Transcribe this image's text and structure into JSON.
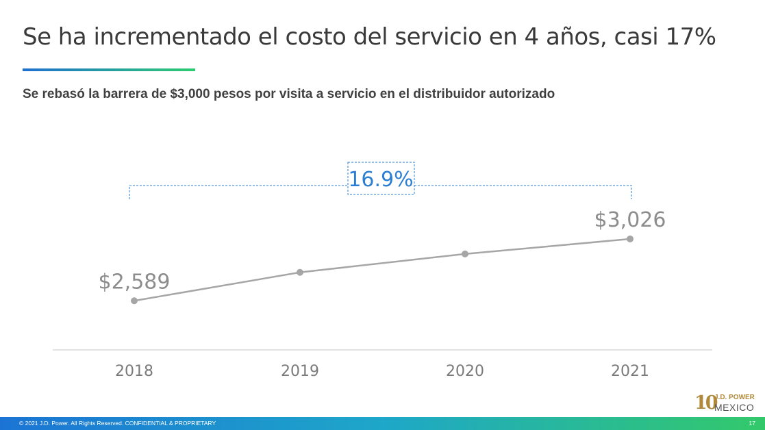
{
  "slide": {
    "title": "Se ha incrementado el costo del servicio en 4 años, casi 17%",
    "subtitle": "Se rebasó la barrera de $3,000 pesos por visita a servicio en el distribuidor autorizado"
  },
  "chart_data": {
    "type": "line",
    "categories": [
      "2018",
      "2019",
      "2020",
      "2021"
    ],
    "values": [
      2589,
      2790,
      2920,
      3026
    ],
    "data_labels": [
      "$2,589",
      "",
      "",
      "$3,026"
    ],
    "annotation": "16.9%",
    "ylim": [
      2000,
      3500
    ],
    "grid": false,
    "colors": {
      "line": "#a6a6a6",
      "annotation": "#2a7fd4",
      "axis": "#d9d9d9"
    }
  },
  "footer": {
    "copyright": "© 2021 J.D. Power. All Rights Reserved. CONFIDENTIAL & PROPRIETARY",
    "page": "17"
  },
  "logo": {
    "number": "10",
    "brand": "J.D. POWER",
    "country": "MEXICO"
  }
}
